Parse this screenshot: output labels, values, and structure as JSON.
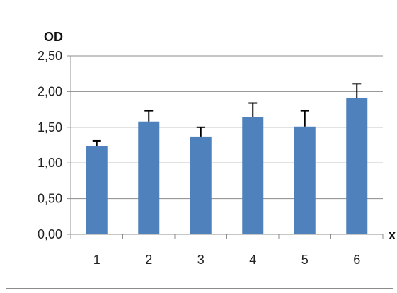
{
  "chart_data": {
    "type": "bar",
    "ylabel": "OD",
    "xlabel": "x",
    "categories": [
      "1",
      "2",
      "3",
      "4",
      "5",
      "6"
    ],
    "values": [
      1.23,
      1.58,
      1.37,
      1.64,
      1.51,
      1.91
    ],
    "error_bars": [
      0.08,
      0.15,
      0.13,
      0.2,
      0.22,
      0.2
    ],
    "ylim": [
      0,
      2.5
    ],
    "y_ticks": [
      "0,00",
      "0,50",
      "1,00",
      "1,50",
      "2,00",
      "2,50"
    ],
    "grid": "horizontal",
    "legend": "none",
    "colors": {
      "bar": "#4f81bd",
      "grid": "#8c8c8c",
      "error": "#000000"
    }
  }
}
